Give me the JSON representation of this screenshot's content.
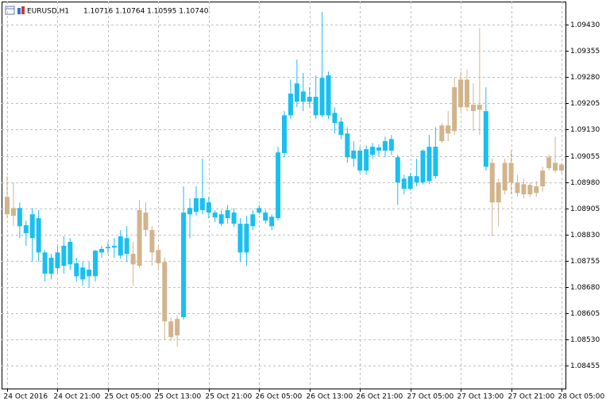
{
  "chart_data": {
    "type": "candlestick",
    "title": "EURUSD,H1",
    "subtitle": "1.10716 1.10764 1.10595 1.10740",
    "categories": [
      "24 Oct 2016",
      null,
      null,
      null,
      null,
      null,
      null,
      null,
      "24 Oct 21:00",
      null,
      null,
      null,
      null,
      null,
      null,
      null,
      "25 Oct 05:00",
      null,
      null,
      null,
      null,
      null,
      null,
      null,
      "25 Oct 13:00",
      null,
      null,
      null,
      null,
      null,
      null,
      null,
      "25 Oct 21:00",
      null,
      null,
      null,
      null,
      null,
      null,
      null,
      "26 Oct 05:00",
      null,
      null,
      null,
      null,
      null,
      null,
      null,
      "26 Oct 13:00",
      null,
      null,
      null,
      null,
      null,
      null,
      null,
      "26 Oct 21:00",
      null,
      null,
      null,
      null,
      null,
      null,
      null,
      "27 Oct 05:00",
      null,
      null,
      null,
      null,
      null,
      null,
      null,
      "27 Oct 13:00",
      null,
      null,
      null,
      null,
      null,
      null,
      null,
      "27 Oct 21:00",
      null,
      null,
      null,
      null,
      null,
      null,
      null,
      "28 Oct 05:00"
    ],
    "open": [
      1.08938,
      1.08906,
      1.08906,
      1.08857,
      1.08888,
      1.08877,
      1.08779,
      1.08718,
      1.08734,
      1.08798,
      1.08745,
      1.08748,
      1.08736,
      1.08711,
      1.08711,
      1.08779,
      1.08791,
      1.08793,
      1.0877,
      1.08775,
      1.08775,
      1.08741,
      1.08893,
      1.08843,
      1.08786,
      1.08752,
      1.08582,
      1.08542,
      1.08594,
      1.08888,
      1.08934,
      1.089,
      1.08922,
      1.08893,
      1.08888,
      1.08877,
      1.08893,
      1.08861,
      1.08779,
      1.08854,
      1.08893,
      1.08893,
      1.08854,
      1.08877,
      1.09063,
      1.09171,
      1.0921,
      1.09239,
      1.0921,
      1.09224,
      1.09171,
      1.09285,
      1.09178,
      1.09153,
      1.09119,
      1.09047,
      1.0907,
      1.09013,
      1.09058,
      1.09079,
      1.0907,
      1.09103,
      1.09051,
      1.0899,
      1.08961,
      1.08979,
      1.08979,
      1.09081,
      1.08997,
      1.09097,
      1.09142,
      1.09126,
      1.09194,
      1.09273,
      1.09183,
      1.09201,
      1.09183,
      1.09035,
      1.08922,
      1.08956,
      1.09035,
      1.08979,
      1.08945,
      1.08972,
      1.08949,
      1.08968,
      1.0902,
      1.09035,
      1.09013
    ],
    "high": [
      1.08997,
      1.08979,
      1.08922,
      1.0887,
      1.08906,
      1.089,
      1.08786,
      1.08775,
      1.08798,
      1.08825,
      1.0882,
      1.08764,
      1.08752,
      1.08752,
      1.08786,
      1.08798,
      1.08809,
      1.0882,
      1.08843,
      1.08854,
      1.08809,
      1.08929,
      1.08922,
      1.08854,
      1.08798,
      1.08764,
      1.08594,
      1.08598,
      1.08968,
      1.08934,
      1.08968,
      1.09047,
      1.08938,
      1.089,
      1.089,
      1.08915,
      1.08906,
      1.08877,
      1.08884,
      1.089,
      1.08915,
      1.089,
      1.08888,
      1.09081,
      1.09183,
      1.09273,
      1.0933,
      1.09292,
      1.09251,
      1.09285,
      1.09466,
      1.09296,
      1.09194,
      1.09165,
      1.09137,
      1.09097,
      1.09081,
      1.09085,
      1.09092,
      1.09088,
      1.0911,
      1.09115,
      1.09058,
      1.09001,
      1.09006,
      1.09047,
      1.09074,
      1.09115,
      1.09137,
      1.09149,
      1.09183,
      1.09278,
      1.09296,
      1.09301,
      1.09262,
      1.09421,
      1.09251,
      1.09047,
      1.0899,
      1.09047,
      1.0907,
      1.09001,
      1.0899,
      1.08979,
      1.08983,
      1.09024,
      1.09058,
      1.0911,
      1.09035
    ],
    "low": [
      1.08877,
      1.08854,
      1.0882,
      1.08798,
      1.08752,
      1.08752,
      1.08696,
      1.08702,
      1.08718,
      1.08718,
      1.0873,
      1.08696,
      1.08684,
      1.0868,
      1.08696,
      1.08764,
      1.08775,
      1.08764,
      1.08761,
      1.08752,
      1.08684,
      1.08734,
      1.08825,
      1.08741,
      1.0873,
      1.0853,
      1.08526,
      1.0851,
      1.08587,
      1.0882,
      1.08884,
      1.08888,
      1.08877,
      1.08866,
      1.08854,
      1.08861,
      1.08852,
      1.08752,
      1.08741,
      1.08843,
      1.08888,
      1.08861,
      1.08843,
      1.0887,
      1.09051,
      1.0916,
      1.09194,
      1.09183,
      1.09194,
      1.0916,
      1.09165,
      1.0916,
      1.09119,
      1.09103,
      1.09035,
      1.09024,
      1.09006,
      1.09001,
      1.09047,
      1.09054,
      1.09051,
      1.09058,
      1.08915,
      1.08945,
      1.08956,
      1.08968,
      1.08974,
      1.08974,
      1.0899,
      1.09092,
      1.09097,
      1.09115,
      1.09183,
      1.09183,
      1.09126,
      1.09115,
      1.09013,
      1.08825,
      1.08854,
      1.08945,
      1.08945,
      1.08938,
      1.08934,
      1.08938,
      1.08938,
      1.08952,
      1.09013,
      1.09006,
      1.09006
    ],
    "close": [
      1.08888,
      1.08884,
      1.08854,
      1.08834,
      1.0882,
      1.08779,
      1.08718,
      1.08764,
      1.08779,
      1.08741,
      1.08809,
      1.08711,
      1.08702,
      1.0873,
      1.08784,
      1.08789,
      1.08795,
      1.08798,
      1.08825,
      1.0882,
      1.08745,
      1.089,
      1.08843,
      1.08779,
      1.08748,
      1.08582,
      1.08537,
      1.08589,
      1.08893,
      1.08906,
      1.08895,
      1.08934,
      1.08893,
      1.08879,
      1.08861,
      1.089,
      1.08861,
      1.08779,
      1.08861,
      1.08888,
      1.08906,
      1.0887,
      1.08881,
      1.09065,
      1.09171,
      1.09233,
      1.09262,
      1.0921,
      1.09224,
      1.09171,
      1.09278,
      1.09171,
      1.09149,
      1.09115,
      1.09051,
      1.0907,
      1.09013,
      1.09074,
      1.09081,
      1.0907,
      1.09097,
      1.0907,
      1.08979,
      1.08961,
      1.08997,
      1.08997,
      1.0907,
      1.08983,
      1.09081,
      1.09142,
      1.09119,
      1.09251,
      1.09273,
      1.09194,
      1.09201,
      1.09187,
      1.09024,
      1.08922,
      1.08979,
      1.09035,
      1.08979,
      1.08949,
      1.08974,
      1.08945,
      1.08968,
      1.09013,
      1.09051,
      1.09013,
      1.0903
    ],
    "colors": [
      "#d2b48c",
      "#d2b48c",
      "#19bff1",
      "#19bff1",
      "#19bff1",
      "#19bff1",
      "#19bff1",
      "#19bff1",
      "#19bff1",
      "#19bff1",
      "#19bff1",
      "#19bff1",
      "#19bff1",
      "#19bff1",
      "#19bff1",
      "#19bff1",
      "#19bff1",
      "#19bff1",
      "#19bff1",
      "#19bff1",
      "#d2b48c",
      "#d2b48c",
      "#d2b48c",
      "#d2b48c",
      "#d2b48c",
      "#d2b48c",
      "#d2b48c",
      "#d2b48c",
      "#19bff1",
      "#19bff1",
      "#19bff1",
      "#19bff1",
      "#19bff1",
      "#19bff1",
      "#19bff1",
      "#19bff1",
      "#19bff1",
      "#19bff1",
      "#19bff1",
      "#19bff1",
      "#19bff1",
      "#19bff1",
      "#19bff1",
      "#19bff1",
      "#19bff1",
      "#19bff1",
      "#19bff1",
      "#19bff1",
      "#19bff1",
      "#19bff1",
      "#19bff1",
      "#19bff1",
      "#19bff1",
      "#19bff1",
      "#19bff1",
      "#19bff1",
      "#19bff1",
      "#19bff1",
      "#19bff1",
      "#19bff1",
      "#19bff1",
      "#19bff1",
      "#19bff1",
      "#19bff1",
      "#19bff1",
      "#19bff1",
      "#19bff1",
      "#19bff1",
      "#19bff1",
      "#d2b48c",
      "#d2b48c",
      "#d2b48c",
      "#d2b48c",
      "#d2b48c",
      "#d2b48c",
      "#d2b48c",
      "#19bff1",
      "#d2b48c",
      "#d2b48c",
      "#d2b48c",
      "#d2b48c",
      "#d2b48c",
      "#d2b48c",
      "#d2b48c",
      "#d2b48c",
      "#d2b48c",
      "#d2b48c",
      "#d2b48c",
      "#d2b48c"
    ],
    "ylim": [
      1.0839,
      1.09496
    ],
    "yticks": [
      {
        "value": 1.0943,
        "label": "1.09430"
      },
      {
        "value": 1.09355,
        "label": "1.09355"
      },
      {
        "value": 1.0928,
        "label": "1.09280"
      },
      {
        "value": 1.09205,
        "label": "1.09205"
      },
      {
        "value": 1.0913,
        "label": "1.09130"
      },
      {
        "value": 1.09055,
        "label": "1.09055"
      },
      {
        "value": 1.0898,
        "label": "1.08980"
      },
      {
        "value": 1.08905,
        "label": "1.08905"
      },
      {
        "value": 1.0883,
        "label": "1.08830"
      },
      {
        "value": 1.08755,
        "label": "1.08755"
      },
      {
        "value": 1.0868,
        "label": "1.08680"
      },
      {
        "value": 1.08605,
        "label": "1.08605"
      },
      {
        "value": 1.0853,
        "label": "1.08530"
      },
      {
        "value": 1.08455,
        "label": "1.08455"
      }
    ],
    "grid": true
  }
}
